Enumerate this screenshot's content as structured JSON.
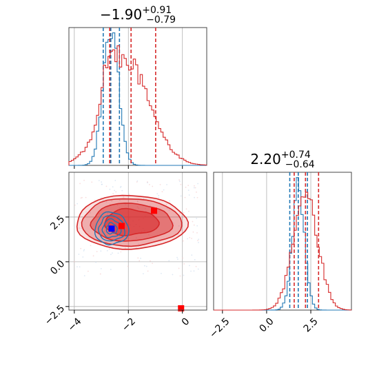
{
  "chart_data": {
    "type": "corner",
    "colors": {
      "blue": "#1f77b4",
      "red": "#d62728",
      "marker_blue": "#0000ff",
      "marker_red": "#ff0000",
      "grid": "#b0b0b0"
    },
    "grid": true,
    "panels": [
      {
        "id": "param1_marginal",
        "type": "histogram",
        "title": {
          "value": "−1.90",
          "sup": "+0.91",
          "sub": "−0.79"
        },
        "xlim": [
          -4.2,
          0.9
        ],
        "x_ticks": [
          -4,
          -2,
          0
        ],
        "tick_labels_shown": false,
        "series": [
          {
            "color": "blue",
            "center": -2.65,
            "sigma": 0.28,
            "weight": 1.0,
            "quantiles": [
              -2.93,
              -2.65,
              -2.33
            ]
          },
          {
            "color": "red",
            "components": [
              {
                "center": -2.0,
                "sigma": 0.85,
                "weight": 0.7
              },
              {
                "center": -2.7,
                "sigma": 0.25,
                "weight": 0.3
              }
            ],
            "quantiles": [
              -2.69,
              -1.9,
              -0.99
            ]
          }
        ]
      },
      {
        "id": "param2_marginal",
        "type": "histogram",
        "title": {
          "value": "2.20",
          "sup": "+0.74",
          "sub": "−0.64"
        },
        "xlim": [
          -3.0,
          4.8
        ],
        "x_ticks": [
          -2.5,
          0.0,
          2.5
        ],
        "x_tick_labels": [
          "−2.5",
          "0.0",
          "2.5"
        ],
        "series": [
          {
            "color": "blue",
            "center": 1.8,
            "sigma": 0.35,
            "weight": 1.0,
            "quantiles": [
              1.31,
              1.79,
              2.31
            ]
          },
          {
            "color": "red",
            "center": 2.2,
            "sigma": 0.68,
            "weight": 1.0,
            "quantiles": [
              1.56,
              2.2,
              2.94
            ]
          }
        ]
      },
      {
        "id": "joint",
        "type": "contour",
        "xlim": [
          -4.2,
          0.9
        ],
        "ylim": [
          -2.7,
          5.0
        ],
        "x_ticks": [
          -4,
          -2,
          0
        ],
        "x_tick_labels": [
          "−4",
          "−2",
          "0"
        ],
        "y_ticks": [
          -2.5,
          0.0,
          2.5
        ],
        "y_tick_labels": [
          "−2.5",
          "0.0",
          "2.5"
        ],
        "red_markers": [
          [
            -1.05,
            2.85
          ],
          [
            -2.25,
            2.0
          ],
          [
            -0.05,
            -2.6
          ]
        ],
        "blue_markers": [
          [
            -2.62,
            1.85
          ]
        ]
      }
    ]
  }
}
